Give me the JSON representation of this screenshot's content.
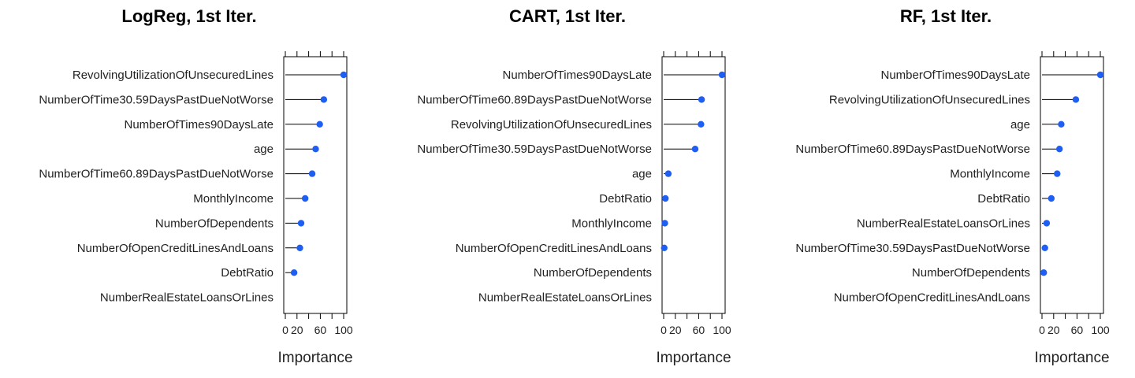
{
  "chart_data": [
    {
      "type": "lollipop",
      "title": "LogReg, 1st Iter.",
      "xlabel": "Importance",
      "xlim": [
        0,
        100
      ],
      "ticks": [
        0,
        20,
        60,
        100
      ],
      "tick_labels": [
        "0",
        "20",
        "60",
        "100"
      ],
      "color": "#1f5ef2",
      "categories": [
        "RevolvingUtilizationOfUnsecuredLines",
        "NumberOfTime30.59DaysPastDueNotWorse",
        "NumberOfTimes90DaysLate",
        "age",
        "NumberOfTime60.89DaysPastDueNotWorse",
        "MonthlyIncome",
        "NumberOfDependents",
        "NumberOfOpenCreditLinesAndLoans",
        "DebtRatio",
        "NumberRealEstateLoansOrLines"
      ],
      "values": [
        100,
        66,
        59,
        52,
        46,
        34,
        27,
        25,
        15,
        0
      ]
    },
    {
      "type": "lollipop",
      "title": "CART, 1st Iter.",
      "xlabel": "Importance",
      "xlim": [
        0,
        100
      ],
      "ticks": [
        0,
        20,
        60,
        100
      ],
      "tick_labels": [
        "0",
        "20",
        "60",
        "100"
      ],
      "color": "#1f5ef2",
      "categories": [
        "NumberOfTimes90DaysLate",
        "NumberOfTime60.89DaysPastDueNotWorse",
        "RevolvingUtilizationOfUnsecuredLines",
        "NumberOfTime30.59DaysPastDueNotWorse",
        "age",
        "DebtRatio",
        "MonthlyIncome",
        "NumberOfOpenCreditLinesAndLoans",
        "NumberOfDependents",
        "NumberRealEstateLoansOrLines"
      ],
      "values": [
        100,
        65,
        64,
        54,
        8,
        3,
        2,
        1,
        0,
        0
      ]
    },
    {
      "type": "lollipop",
      "title": "RF, 1st Iter.",
      "xlabel": "Importance",
      "xlim": [
        0,
        100
      ],
      "ticks": [
        0,
        20,
        60,
        100
      ],
      "tick_labels": [
        "0",
        "20",
        "60",
        "100"
      ],
      "color": "#1f5ef2",
      "categories": [
        "NumberOfTimes90DaysLate",
        "RevolvingUtilizationOfUnsecuredLines",
        "age",
        "NumberOfTime60.89DaysPastDueNotWorse",
        "MonthlyIncome",
        "DebtRatio",
        "NumberRealEstateLoansOrLines",
        "NumberOfTime30.59DaysPastDueNotWorse",
        "NumberOfDependents",
        "NumberOfOpenCreditLinesAndLoans"
      ],
      "values": [
        100,
        58,
        33,
        30,
        26,
        16,
        8,
        5,
        3,
        0
      ]
    }
  ]
}
